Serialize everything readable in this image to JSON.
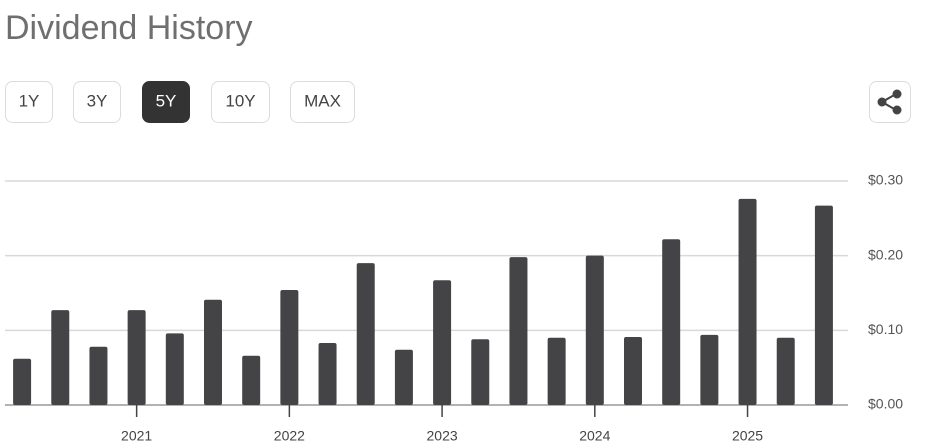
{
  "header": {
    "title": "Dividend History"
  },
  "range_buttons": [
    {
      "label": "1Y",
      "selected": false
    },
    {
      "label": "3Y",
      "selected": false
    },
    {
      "label": "5Y",
      "selected": true
    },
    {
      "label": "10Y",
      "selected": false
    },
    {
      "label": "MAX",
      "selected": false
    }
  ],
  "chart_data": {
    "type": "bar",
    "color": "#444447",
    "categories": [
      null,
      null,
      null,
      "2021",
      null,
      null,
      null,
      "2022",
      null,
      null,
      null,
      "2023",
      null,
      null,
      null,
      "2024",
      null,
      null,
      null,
      "2025",
      null,
      null
    ],
    "values": [
      0.062,
      0.127,
      0.078,
      0.127,
      0.096,
      0.141,
      0.066,
      0.154,
      0.083,
      0.19,
      0.074,
      0.167,
      0.088,
      0.198,
      0.09,
      0.2,
      0.091,
      0.222,
      0.094,
      0.276,
      0.09,
      0.267
    ],
    "ylim": [
      0,
      0.3
    ],
    "yticks": [
      {
        "value": 0,
        "label": "$0.00"
      },
      {
        "value": 0.1,
        "label": "$0.10"
      },
      {
        "value": 0.2,
        "label": "$0.20"
      },
      {
        "value": 0.3,
        "label": "$0.30"
      }
    ],
    "grid": true
  }
}
